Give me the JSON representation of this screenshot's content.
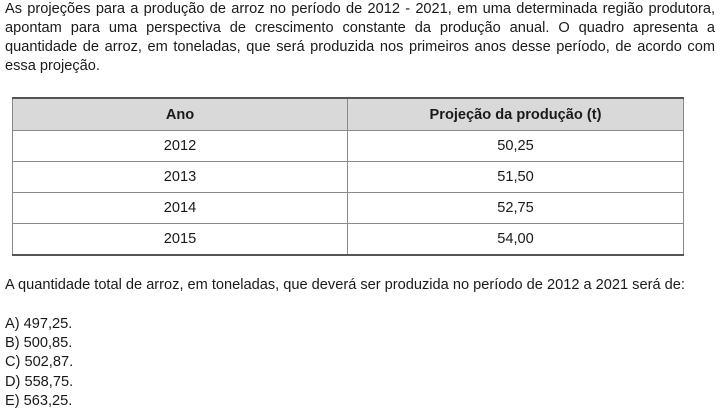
{
  "intro": "As projeções para a produção de arroz no período de 2012 - 2021, em uma determinada região produtora, apontam para uma perspectiva de crescimento constante da produção anual. O quadro apresenta a quantidade de arroz, em toneladas, que será produzida nos primeiros anos desse período, de acordo com essa projeção.",
  "table": {
    "headers": [
      "Ano",
      "Projeção da produção (t)"
    ],
    "rows": [
      [
        "2012",
        "50,25"
      ],
      [
        "2013",
        "51,50"
      ],
      [
        "2014",
        "52,75"
      ],
      [
        "2015",
        "54,00"
      ]
    ]
  },
  "question": "A quantidade total de arroz, em toneladas, que deverá ser produzida no período de 2012 a 2021 será de:",
  "options": [
    "A) 497,25.",
    "B) 500,85.",
    "C) 502,87.",
    "D) 558,75.",
    "E) 563,25."
  ]
}
